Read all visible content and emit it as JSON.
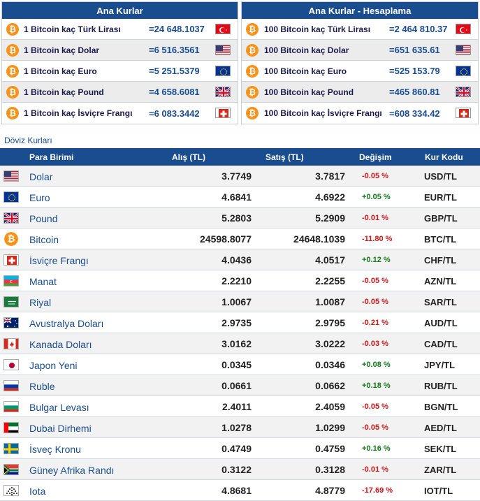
{
  "main_rates": {
    "title": "Ana Kurlar",
    "rows": [
      {
        "label": "1 Bitcoin kaç Türk Lirası",
        "value": "=24 648.1037",
        "flag": "turkey-flag"
      },
      {
        "label": "1 Bitcoin kaç Dolar",
        "value": "=6 516.3561",
        "flag": "usa-flag"
      },
      {
        "label": "1 Bitcoin kaç Euro",
        "value": "=5 251.5379",
        "flag": "eu-flag"
      },
      {
        "label": "1 Bitcoin kaç Pound",
        "value": "=4 658.6081",
        "flag": "uk-flag"
      },
      {
        "label": "1 Bitcoin kaç İsviçre Frangı",
        "value": "=6 083.3442",
        "flag": "switzerland-flag"
      }
    ]
  },
  "calc_rates": {
    "title": "Ana Kurlar - Hesaplama",
    "rows": [
      {
        "label": "100 Bitcoin kaç Türk Lirası",
        "value": "=2 464 810.37",
        "flag": "turkey-flag"
      },
      {
        "label": "100 Bitcoin kaç Dolar",
        "value": "=651 635.61",
        "flag": "usa-flag"
      },
      {
        "label": "100 Bitcoin kaç Euro",
        "value": "=525 153.79",
        "flag": "eu-flag"
      },
      {
        "label": "100 Bitcoin kaç Pound",
        "value": "=465 860.81",
        "flag": "uk-flag"
      },
      {
        "label": "100 Bitcoin kaç İsviçre Frangı",
        "value": "=608 334.42",
        "flag": "switzerland-flag"
      }
    ]
  },
  "currency_section": {
    "title": "Döviz Kurları",
    "headers": {
      "currency": "Para Birimi",
      "buy": "Alış (TL)",
      "sell": "Satış (TL)",
      "change": "Değişim",
      "code": "Kur Kodu"
    },
    "rows": [
      {
        "flag": "usa-flag",
        "name": "Dolar",
        "buy": "3.7749",
        "sell": "3.7817",
        "change": "-0.05 %",
        "dir": "neg",
        "code": "USD/TL"
      },
      {
        "flag": "eu-flag",
        "name": "Euro",
        "buy": "4.6841",
        "sell": "4.6922",
        "change": "+0.05 %",
        "dir": "pos",
        "code": "EUR/TL"
      },
      {
        "flag": "uk-flag",
        "name": "Pound",
        "buy": "5.2803",
        "sell": "5.2909",
        "change": "-0.01 %",
        "dir": "neg",
        "code": "GBP/TL"
      },
      {
        "flag": "bitcoin-icon",
        "name": "Bitcoin",
        "buy": "24598.8077",
        "sell": "24648.1039",
        "change": "-11.80 %",
        "dir": "neg",
        "code": "BTC/TL"
      },
      {
        "flag": "switzerland-flag",
        "name": "İsviçre Frangı",
        "buy": "4.0436",
        "sell": "4.0517",
        "change": "+0.12 %",
        "dir": "pos",
        "code": "CHF/TL"
      },
      {
        "flag": "azerbaijan-flag",
        "name": "Manat",
        "buy": "2.2210",
        "sell": "2.2255",
        "change": "-0.05 %",
        "dir": "neg",
        "code": "AZN/TL"
      },
      {
        "flag": "saudi-flag",
        "name": "Riyal",
        "buy": "1.0067",
        "sell": "1.0087",
        "change": "-0.05 %",
        "dir": "neg",
        "code": "SAR/TL"
      },
      {
        "flag": "australia-flag",
        "name": "Avustralya Doları",
        "buy": "2.9735",
        "sell": "2.9795",
        "change": "-0.21 %",
        "dir": "neg",
        "code": "AUD/TL"
      },
      {
        "flag": "canada-flag",
        "name": "Kanada Doları",
        "buy": "3.0162",
        "sell": "3.0222",
        "change": "-0.03 %",
        "dir": "neg",
        "code": "CAD/TL"
      },
      {
        "flag": "japan-flag",
        "name": "Japon Yeni",
        "buy": "0.0345",
        "sell": "0.0346",
        "change": "+0.08 %",
        "dir": "pos",
        "code": "JPY/TL"
      },
      {
        "flag": "russia-flag",
        "name": "Ruble",
        "buy": "0.0661",
        "sell": "0.0662",
        "change": "+0.18 %",
        "dir": "pos",
        "code": "RUB/TL"
      },
      {
        "flag": "bulgaria-flag",
        "name": "Bulgar Levası",
        "buy": "2.4011",
        "sell": "2.4059",
        "change": "-0.05 %",
        "dir": "neg",
        "code": "BGN/TL"
      },
      {
        "flag": "uae-flag",
        "name": "Dubai Dirhemi",
        "buy": "1.0278",
        "sell": "1.0299",
        "change": "-0.05 %",
        "dir": "neg",
        "code": "AED/TL"
      },
      {
        "flag": "sweden-flag",
        "name": "İsveç Kronu",
        "buy": "0.4749",
        "sell": "0.4759",
        "change": "+0.16 %",
        "dir": "pos",
        "code": "SEK/TL"
      },
      {
        "flag": "south-africa-flag",
        "name": "Güney Afrika Randı",
        "buy": "0.3122",
        "sell": "0.3128",
        "change": "-0.01 %",
        "dir": "neg",
        "code": "ZAR/TL"
      },
      {
        "flag": "iota-icon",
        "name": "Iota",
        "buy": "4.8681",
        "sell": "4.8779",
        "change": "-17.69 %",
        "dir": "neg",
        "code": "IOT/TL"
      }
    ]
  },
  "colors": {
    "header_blue": "#1a4d8f",
    "negative": "#d01616",
    "positive": "#137a19",
    "bitcoin_orange": "#f7931a"
  }
}
